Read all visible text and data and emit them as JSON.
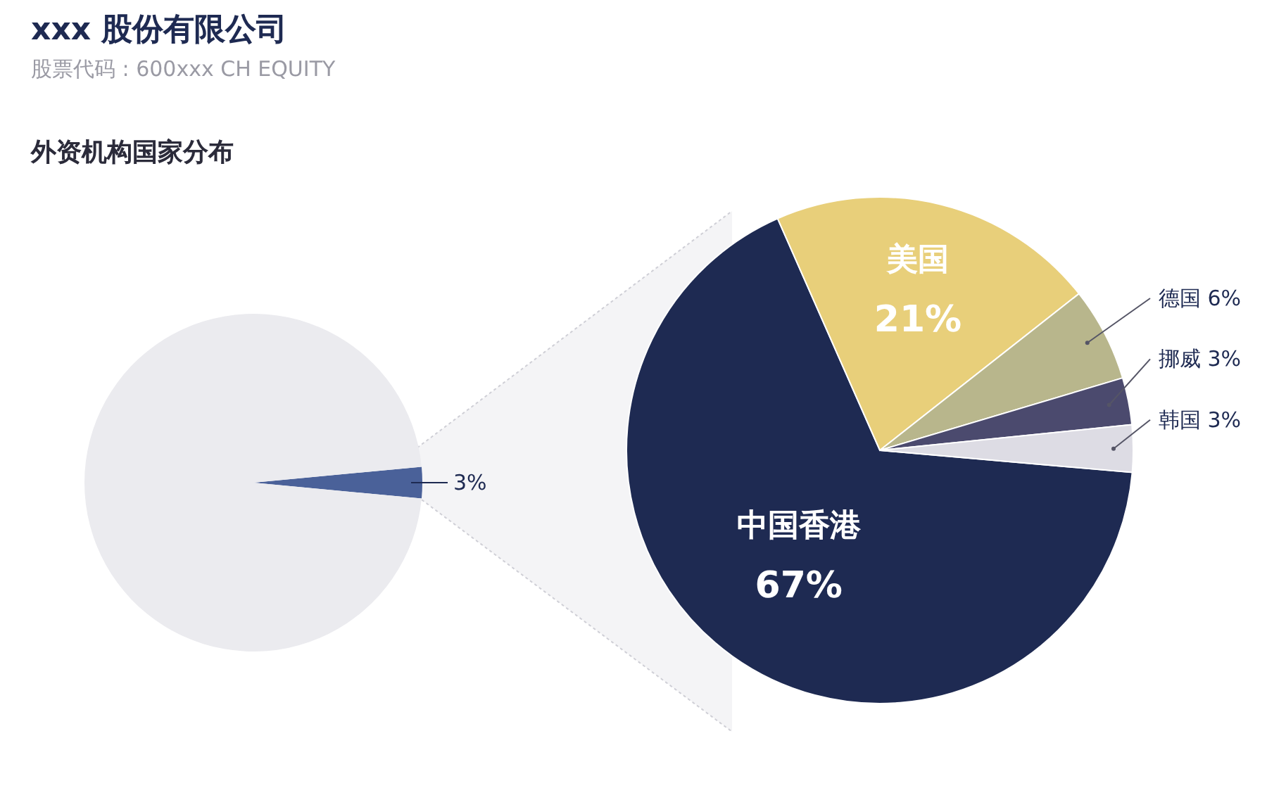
{
  "chart_data": [
    {
      "type": "pie",
      "title": "xxx 股份有限公司",
      "subtitle": "股票代码 : 600xxx CH EQUITY",
      "annotations": [
        "外资机构国家分布"
      ],
      "categories": [
        null,
        null
      ],
      "values": [
        3,
        97
      ],
      "colors": [
        "#4a6199",
        "#ebebef"
      ],
      "value_labels": [
        "3%",
        null
      ]
    },
    {
      "type": "pie",
      "categories": [
        "中国香港",
        "美国",
        "德国",
        "挪威",
        "韩国"
      ],
      "values": [
        67,
        21,
        6,
        3,
        3
      ],
      "colors": [
        "#1e2a52",
        "#e8cf7a",
        "#b8b68c",
        "#4b4a6e",
        "#dddce4"
      ],
      "value_labels": [
        "67%",
        "21%",
        "6%",
        "3%",
        "3%"
      ]
    }
  ]
}
